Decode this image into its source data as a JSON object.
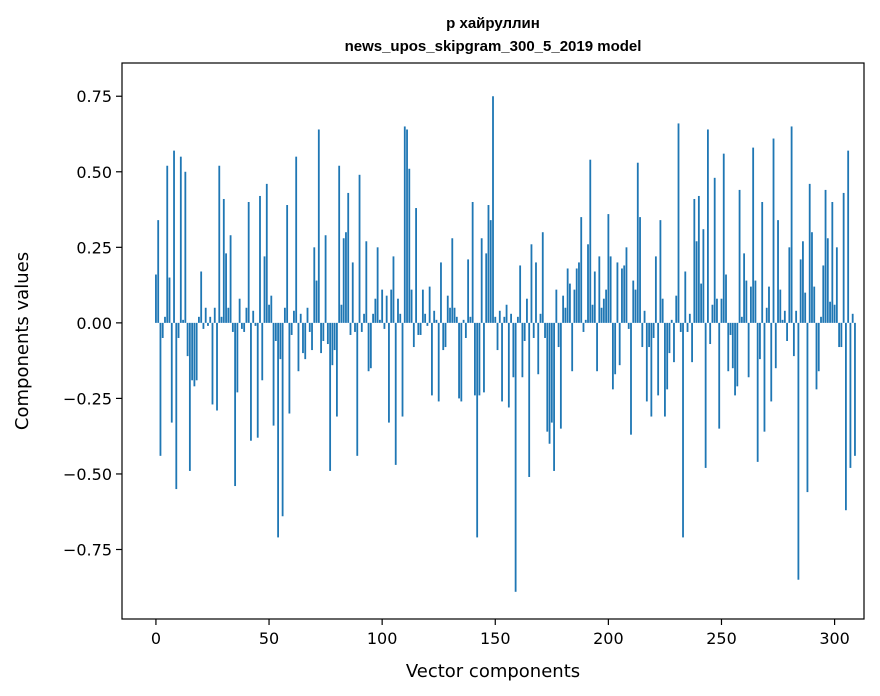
{
  "chart_data": {
    "type": "bar",
    "title_line1": "р хайруллин",
    "title_line2": "news_upos_skipgram_300_5_2019 model",
    "xlabel": "Vector components",
    "ylabel": "Components values",
    "xlim": [
      -15,
      313
    ],
    "ylim": [
      -0.98,
      0.86
    ],
    "x_ticks": [
      0,
      50,
      100,
      150,
      200,
      250,
      300
    ],
    "x_tick_labels": [
      "0",
      "50",
      "100",
      "150",
      "200",
      "250",
      "300"
    ],
    "y_ticks": [
      -0.75,
      -0.5,
      -0.25,
      0.0,
      0.25,
      0.5,
      0.75
    ],
    "y_tick_labels": [
      "−0.75",
      "−0.50",
      "−0.25",
      "0.00",
      "0.25",
      "0.50",
      "0.75"
    ],
    "color": "#1f77b4",
    "values": [
      0.16,
      0.34,
      -0.44,
      -0.05,
      0.02,
      0.52,
      0.15,
      -0.33,
      0.57,
      -0.55,
      -0.05,
      0.55,
      0.01,
      0.5,
      -0.11,
      -0.49,
      -0.19,
      -0.21,
      -0.19,
      0.02,
      0.17,
      -0.02,
      0.05,
      -0.01,
      0.02,
      -0.27,
      0.05,
      -0.29,
      0.52,
      0.02,
      0.41,
      0.23,
      0.05,
      0.29,
      -0.03,
      -0.54,
      -0.23,
      0.08,
      -0.02,
      -0.03,
      0.05,
      0.4,
      -0.39,
      0.04,
      -0.01,
      -0.38,
      0.42,
      -0.19,
      0.22,
      0.46,
      0.06,
      0.09,
      -0.34,
      -0.06,
      -0.71,
      -0.12,
      -0.64,
      0.05,
      0.39,
      -0.3,
      -0.04,
      0.04,
      0.55,
      -0.16,
      0.03,
      -0.1,
      -0.12,
      0.05,
      -0.03,
      -0.09,
      0.25,
      0.14,
      0.64,
      -0.1,
      -0.06,
      0.29,
      -0.07,
      -0.49,
      -0.14,
      -0.09,
      -0.31,
      0.52,
      0.06,
      0.28,
      0.3,
      0.43,
      -0.04,
      0.2,
      -0.03,
      -0.44,
      0.49,
      -0.03,
      0.03,
      0.27,
      -0.16,
      -0.15,
      0.03,
      0.08,
      0.25,
      0.01,
      0.11,
      -0.02,
      0.09,
      -0.33,
      0.11,
      0.22,
      -0.47,
      0.08,
      0.03,
      -0.31,
      0.65,
      0.64,
      0.51,
      0.11,
      -0.08,
      0.38,
      -0.04,
      -0.04,
      0.11,
      0.03,
      -0.01,
      0.12,
      -0.24,
      0.04,
      0.01,
      -0.26,
      0.2,
      -0.09,
      -0.08,
      0.09,
      0.05,
      0.28,
      0.05,
      0.02,
      -0.25,
      -0.26,
      0.01,
      -0.05,
      0.21,
      0.02,
      0.4,
      -0.24,
      -0.71,
      -0.24,
      0.28,
      -0.23,
      0.23,
      0.39,
      0.34,
      0.75,
      0.02,
      -0.09,
      0.04,
      -0.26,
      0.02,
      0.06,
      -0.28,
      0.03,
      -0.18,
      -0.89,
      0.02,
      0.19,
      -0.18,
      -0.06,
      0.08,
      -0.51,
      0.26,
      -0.05,
      0.2,
      -0.17,
      0.03,
      0.3,
      -0.05,
      -0.36,
      -0.4,
      -0.33,
      -0.49,
      0.11,
      -0.08,
      -0.35,
      0.09,
      0.05,
      0.18,
      0.13,
      -0.16,
      0.11,
      0.18,
      0.2,
      0.35,
      -0.03,
      0.01,
      0.26,
      0.54,
      0.06,
      0.17,
      -0.16,
      0.22,
      0.05,
      0.08,
      0.11,
      0.36,
      0.22,
      -0.22,
      -0.17,
      0.2,
      -0.14,
      0.18,
      0.19,
      0.25,
      -0.02,
      -0.37,
      0.14,
      0.11,
      0.53,
      0.35,
      -0.08,
      0.04,
      -0.26,
      -0.08,
      -0.31,
      -0.05,
      0.22,
      -0.24,
      0.34,
      0.08,
      -0.31,
      -0.22,
      -0.1,
      0.01,
      -0.13,
      0.09,
      0.66,
      -0.03,
      -0.71,
      0.17,
      -0.03,
      0.03,
      -0.13,
      0.41,
      0.27,
      0.42,
      0.13,
      0.31,
      -0.48,
      0.64,
      -0.07,
      0.06,
      0.48,
      0.08,
      -0.35,
      0.08,
      0.56,
      0.16,
      -0.16,
      -0.04,
      -0.15,
      -0.24,
      -0.21,
      0.44,
      0.02,
      0.23,
      0.14,
      -0.18,
      0.12,
      0.58,
      0.14,
      -0.46,
      -0.12,
      0.4,
      -0.36,
      0.05,
      0.12,
      -0.26,
      0.61,
      -0.15,
      0.34,
      0.11,
      0.01,
      0.04,
      -0.06,
      0.25,
      0.65,
      -0.11,
      0.04,
      -0.85,
      0.21,
      0.27,
      0.1,
      -0.56,
      0.46,
      0.3,
      0.12,
      -0.22,
      -0.16,
      0.02,
      0.19,
      0.44,
      0.28,
      0.07,
      0.4,
      0.06,
      0.25,
      -0.08,
      -0.08,
      0.43,
      -0.62,
      0.57,
      -0.48,
      0.03,
      -0.44
    ]
  }
}
